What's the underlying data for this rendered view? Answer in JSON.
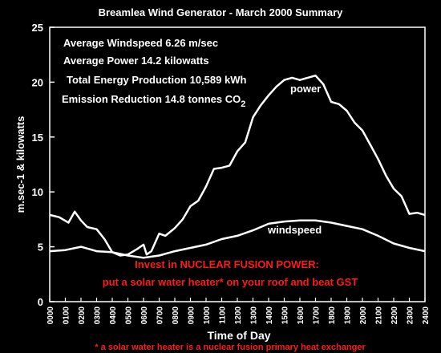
{
  "chart_data": {
    "type": "line",
    "title": "Breamlea Wind Generator - March 2000 Summary",
    "xlabel": "Time of Day",
    "ylabel": "m.sec-1 & kilowatts",
    "ylim": [
      0,
      25
    ],
    "yticks": [
      "0",
      "5",
      "10",
      "15",
      "20",
      "25"
    ],
    "xlim": [
      0,
      2400
    ],
    "xticks": [
      "0000",
      "0100",
      "0200",
      "0300",
      "0400",
      "0500",
      "0600",
      "0700",
      "0800",
      "0900",
      "1000",
      "1100",
      "1200",
      "1300",
      "1400",
      "1500",
      "1600",
      "1700",
      "1800",
      "1900",
      "2000",
      "2100",
      "2200",
      "2300",
      "2400"
    ],
    "grid": false,
    "stats": [
      "Average Windspeed 6.26 m/sec",
      "Average Power 14.2 kilowatts",
      "Total Energy Production 10,589 kWh"
    ],
    "emission_text": "Emission Reduction 14.8 tonnes CO",
    "emission_subscript": "2",
    "series": [
      {
        "name": "power",
        "color": "#ffffff",
        "x": [
          0,
          60,
          120,
          160,
          200,
          240,
          300,
          350,
          400,
          450,
          500,
          560,
          600,
          620,
          650,
          700,
          740,
          800,
          850,
          900,
          950,
          1000,
          1050,
          1100,
          1150,
          1200,
          1250,
          1300,
          1350,
          1400,
          1450,
          1500,
          1550,
          1600,
          1650,
          1700,
          1750,
          1800,
          1850,
          1900,
          1950,
          2000,
          2050,
          2100,
          2150,
          2200,
          2250,
          2300,
          2350,
          2400
        ],
        "y": [
          7.9,
          7.7,
          7.2,
          8.2,
          7.4,
          6.8,
          6.6,
          5.7,
          4.5,
          4.2,
          4.3,
          4.8,
          5.2,
          4.3,
          4.6,
          6.2,
          6.0,
          6.7,
          7.5,
          8.7,
          9.2,
          10.5,
          12.1,
          12.2,
          12.4,
          13.7,
          14.5,
          16.8,
          17.9,
          18.8,
          19.6,
          20.2,
          20.4,
          20.2,
          20.4,
          20.6,
          19.8,
          18.2,
          18.0,
          17.4,
          16.3,
          15.6,
          14.3,
          13.0,
          11.5,
          10.3,
          9.6,
          8.0,
          8.1,
          7.9
        ]
      },
      {
        "name": "windspeed",
        "color": "#ffffff",
        "x": [
          0,
          100,
          200,
          250,
          300,
          400,
          500,
          600,
          650,
          700,
          800,
          900,
          1000,
          1100,
          1200,
          1300,
          1400,
          1500,
          1600,
          1700,
          1800,
          1900,
          2000,
          2100,
          2200,
          2300,
          2400
        ],
        "y": [
          4.6,
          4.7,
          5.0,
          4.8,
          4.6,
          4.5,
          4.2,
          4.0,
          4.1,
          4.2,
          4.6,
          4.9,
          5.2,
          5.7,
          6.0,
          6.5,
          7.1,
          7.3,
          7.4,
          7.4,
          7.2,
          6.9,
          6.6,
          6.0,
          5.3,
          4.9,
          4.6
        ]
      }
    ],
    "series_labels": [
      "power",
      "windspeed"
    ],
    "promo_lines": [
      "Invest in NUCLEAR FUSION POWER:",
      "put a solar water heater* on your roof and beat GST"
    ],
    "footnote": "* a solar water heater is a nuclear fusion primary heat exchanger",
    "colors": {
      "background": "#000000",
      "foreground": "#ffffff",
      "promo": "#ff1a1a"
    }
  }
}
